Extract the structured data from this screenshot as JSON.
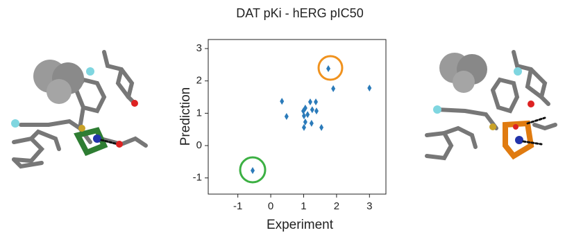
{
  "chart_data": {
    "type": "scatter",
    "title": "DAT pKi - hERG pIC50",
    "x_label": "Experiment",
    "y_label": "Prediction",
    "x": [
      -0.55,
      1.75,
      1.9,
      3.0,
      0.34,
      0.48,
      0.99,
      1.05,
      1.2,
      1.37,
      1.26,
      1.39,
      1.01,
      1.05,
      1.01,
      1.24,
      1.54,
      1.12
    ],
    "values": [
      -0.77,
      2.38,
      1.76,
      1.78,
      1.37,
      0.9,
      1.07,
      1.16,
      1.35,
      1.35,
      1.11,
      1.07,
      0.92,
      0.73,
      0.56,
      0.69,
      0.56,
      0.96
    ],
    "color": "#2b7bba",
    "xlim": [
      -1.9,
      3.5
    ],
    "ylim": [
      -1.5,
      3.28
    ],
    "xticks": [
      -1,
      0,
      1,
      2,
      3
    ],
    "yticks": [
      -1,
      0,
      1,
      2,
      3
    ]
  }
}
